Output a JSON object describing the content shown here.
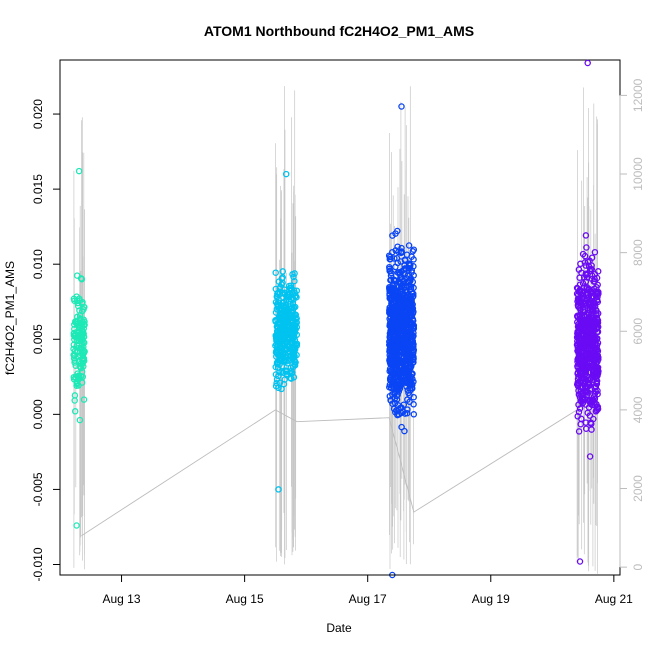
{
  "chart_data": {
    "type": "scatter",
    "title": "ATOM1 Northbound fC2H4O2_PM1_AMS",
    "xlabel": "Date",
    "ylabel": "fC2H4O2_PM1_AMS",
    "x_ticks": [
      {
        "day": 13,
        "label": "Aug 13"
      },
      {
        "day": 15,
        "label": "Aug 15"
      },
      {
        "day": 17,
        "label": "Aug 17"
      },
      {
        "day": 19,
        "label": "Aug 19"
      },
      {
        "day": 21,
        "label": "Aug 21"
      }
    ],
    "xlim": [
      12.0,
      21.1
    ],
    "ylim": [
      -0.0107,
      0.0236
    ],
    "y_ticks": [
      {
        "value": -0.01,
        "label": "-0.010"
      },
      {
        "value": -0.005,
        "label": "-0.005"
      },
      {
        "value": 0.0,
        "label": "0.000"
      },
      {
        "value": 0.005,
        "label": "0.005"
      },
      {
        "value": 0.01,
        "label": "0.010"
      },
      {
        "value": 0.015,
        "label": "0.015"
      },
      {
        "value": 0.02,
        "label": "0.020"
      }
    ],
    "y2lim": [
      -200,
      12900
    ],
    "y2_ticks": [
      {
        "value": 0,
        "label": "0"
      },
      {
        "value": 2000,
        "label": "2000"
      },
      {
        "value": 4000,
        "label": "4000"
      },
      {
        "value": 6000,
        "label": "6000"
      },
      {
        "value": 8000,
        "label": "8000"
      },
      {
        "value": 10000,
        "label": "10000"
      },
      {
        "value": 12000,
        "label": "12000"
      }
    ],
    "series": [
      {
        "color": "#1de9b6",
        "x_range": [
          12.22,
          12.4
        ],
        "y_summary": {
          "min": -0.0074,
          "median": 0.005,
          "max": 0.0162
        },
        "n_points": 140
      },
      {
        "color": "#00c3f0",
        "x_range": [
          15.5,
          15.85
        ],
        "y_summary": {
          "min": -0.005,
          "median": 0.0055,
          "max": 0.016
        },
        "n_points": 380
      },
      {
        "color": "#0a45f5",
        "x_range": [
          17.35,
          17.75
        ],
        "y_summary": {
          "min": -0.0107,
          "median": 0.0055,
          "max": 0.0205
        },
        "n_points": 850
      },
      {
        "color": "#6a0bf5",
        "x_range": [
          20.4,
          20.75
        ],
        "y_summary": {
          "min": -0.0098,
          "median": 0.005,
          "max": 0.0234
        },
        "n_points": 600
      }
    ],
    "secondary_series": {
      "color": "#bdbdbd",
      "axis": "right",
      "path": [
        [
          12.35,
          800
        ],
        [
          15.5,
          4000
        ],
        [
          15.85,
          3700
        ],
        [
          17.35,
          3800
        ],
        [
          17.75,
          1400
        ],
        [
          20.4,
          4000
        ],
        [
          20.75,
          5000
        ]
      ]
    },
    "grid": false,
    "legend": "none"
  }
}
